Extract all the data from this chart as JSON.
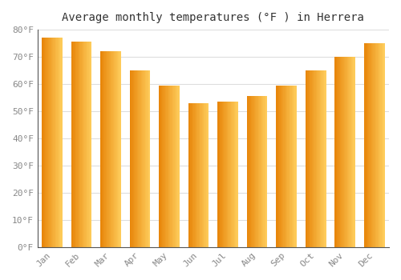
{
  "title": "Average monthly temperatures (°F ) in Herrera",
  "months": [
    "Jan",
    "Feb",
    "Mar",
    "Apr",
    "May",
    "Jun",
    "Jul",
    "Aug",
    "Sep",
    "Oct",
    "Nov",
    "Dec"
  ],
  "values": [
    77.0,
    75.5,
    72.0,
    65.0,
    59.5,
    53.0,
    53.5,
    55.5,
    59.5,
    65.0,
    70.0,
    75.0
  ],
  "bar_color_left": "#E8860A",
  "bar_color_mid": "#F5A623",
  "bar_color_right": "#FFD060",
  "background_color": "#FFFFFF",
  "grid_color": "#DDDDDD",
  "ylim": [
    0,
    80
  ],
  "yticks": [
    0,
    10,
    20,
    30,
    40,
    50,
    60,
    70,
    80
  ],
  "title_fontsize": 10,
  "tick_fontsize": 8,
  "title_font": "monospace",
  "tick_font": "monospace",
  "tick_color": "#888888",
  "title_color": "#333333",
  "bar_width": 0.7
}
